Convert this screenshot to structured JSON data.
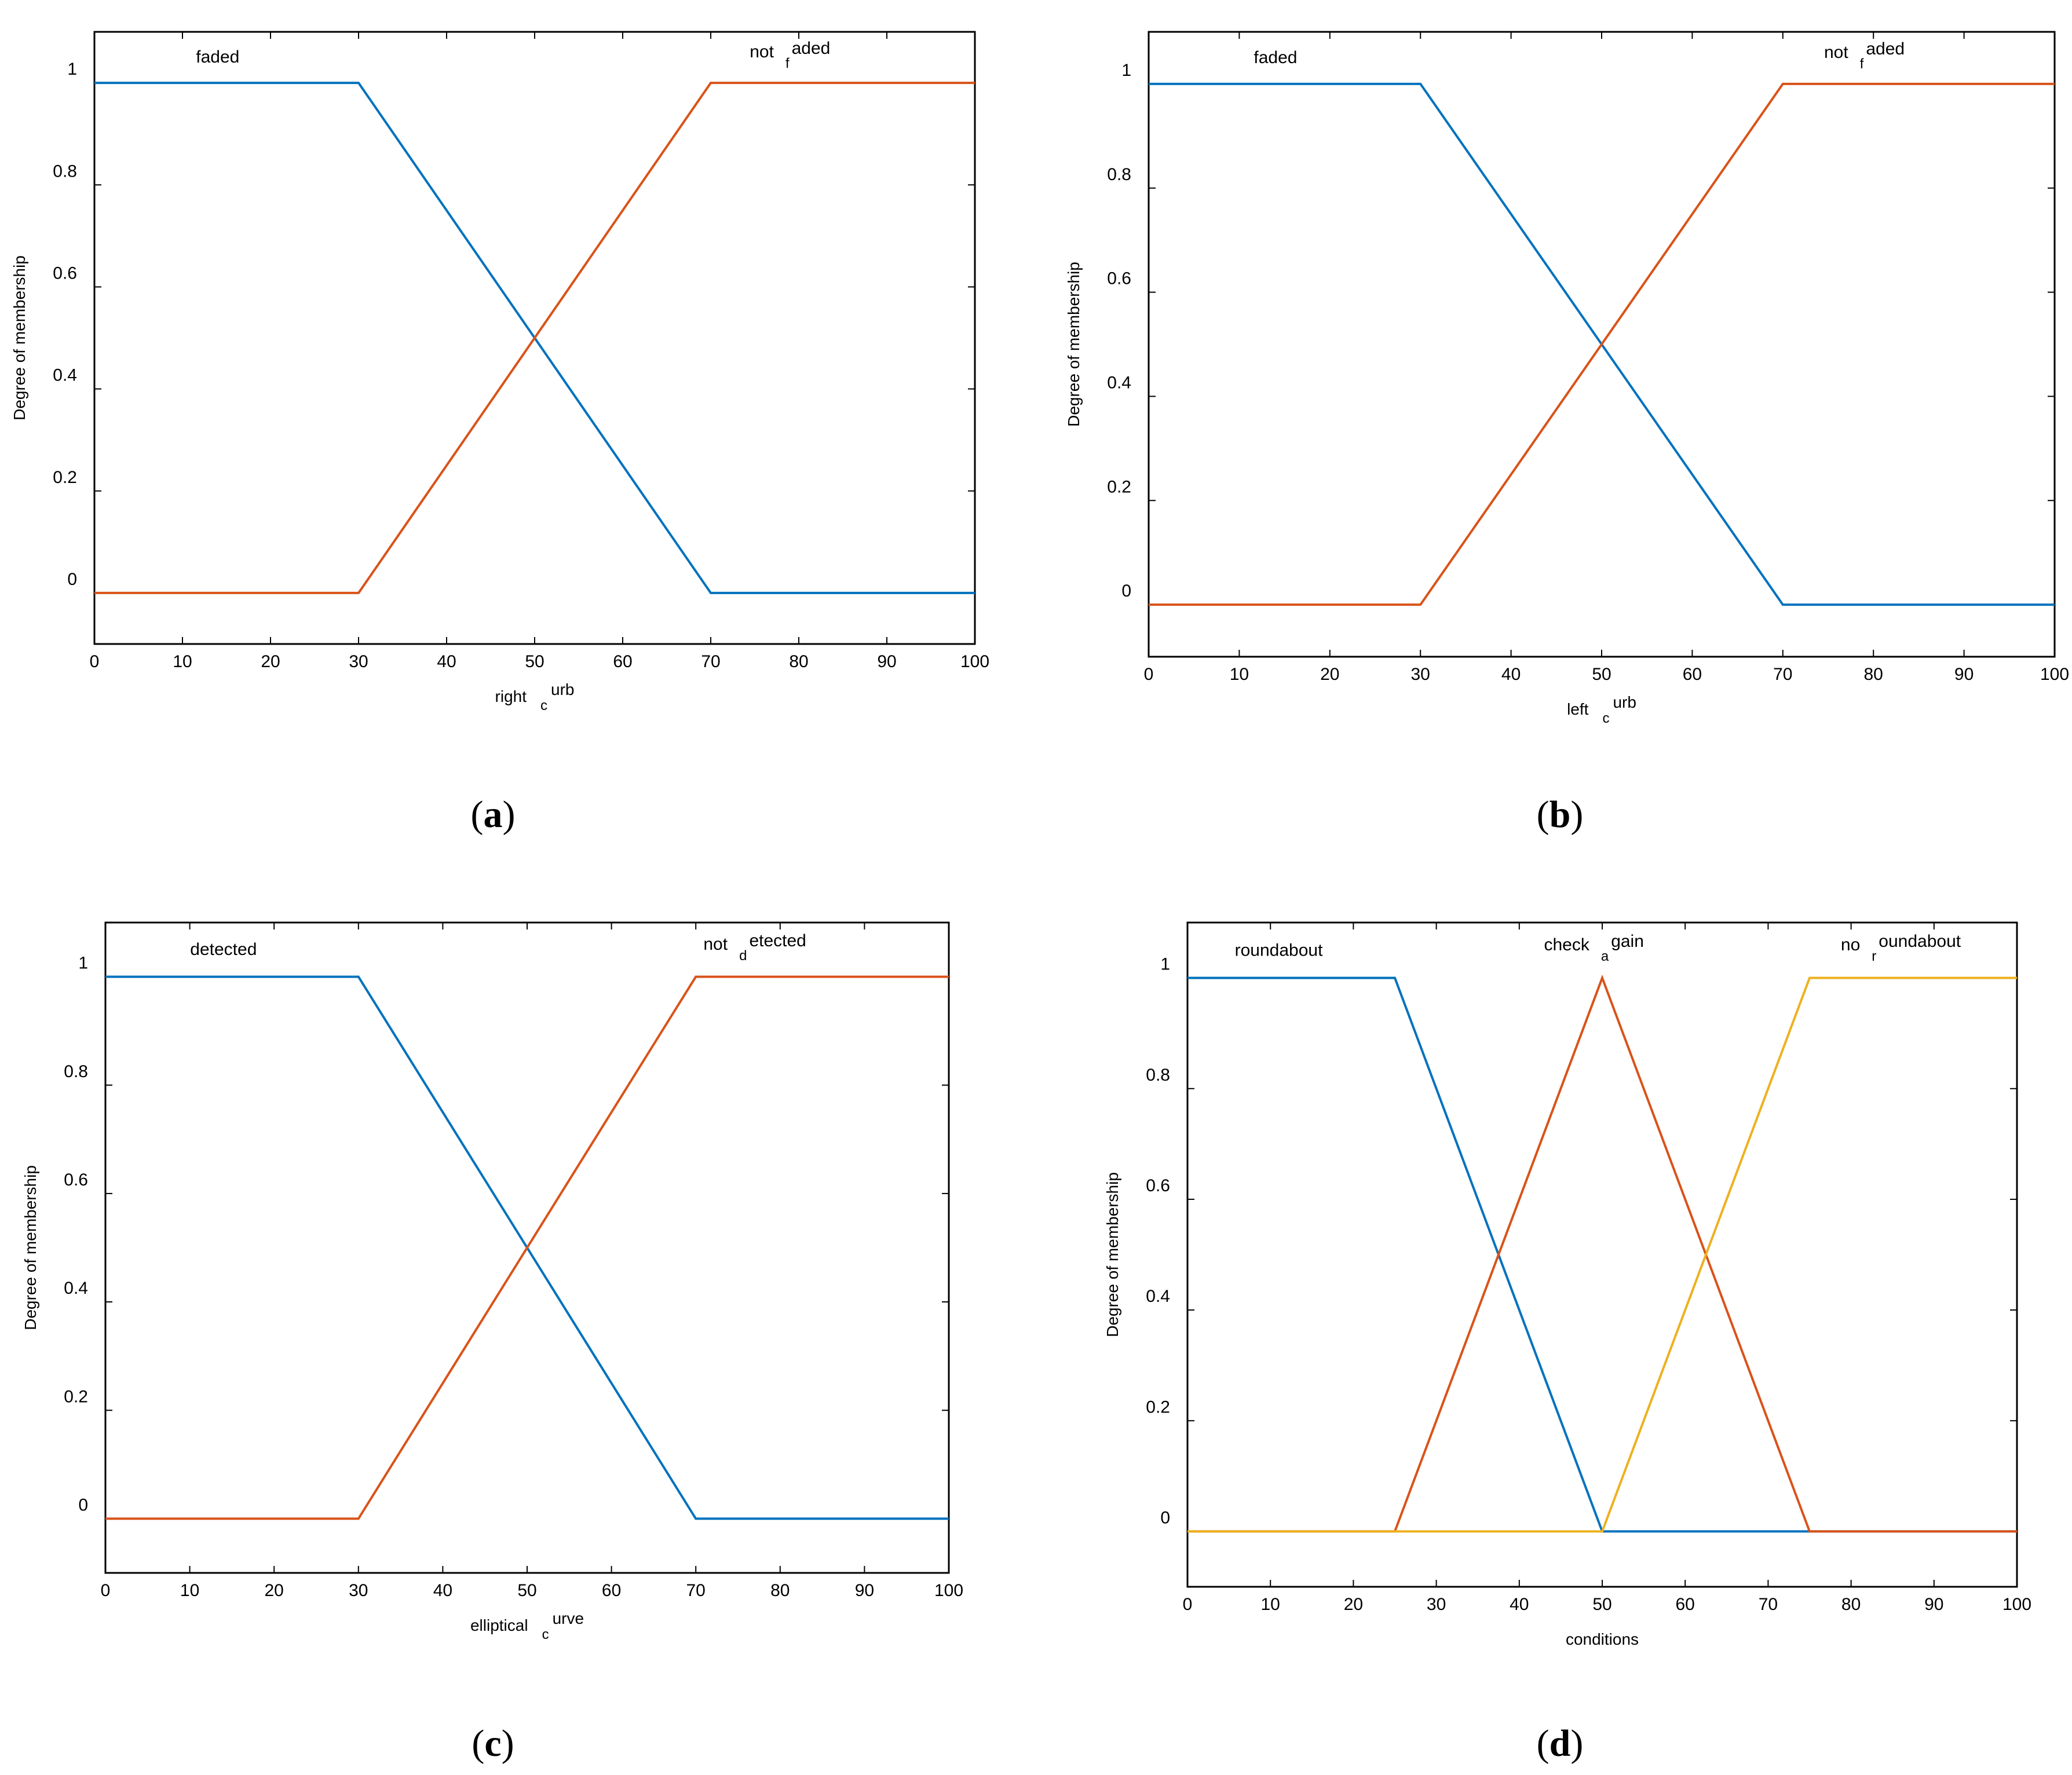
{
  "colors": {
    "series1": "#0072BD",
    "series2": "#D95319",
    "series3": "#EDB120",
    "axis": "#000000"
  },
  "chart_data": [
    {
      "panel": "a",
      "caption": "(a)",
      "type": "line",
      "xlabel_main": "right",
      "xlabel_sub": "c",
      "xlabel_sup": "urb",
      "ylabel": "Degree of membership",
      "xlim": [
        0,
        100
      ],
      "ylim": [
        -0.1,
        1.1
      ],
      "xticks": [
        0,
        10,
        20,
        30,
        40,
        50,
        60,
        70,
        80,
        90,
        100
      ],
      "yticks": [
        0,
        0.2,
        0.4,
        0.6,
        0.8,
        1
      ],
      "series": [
        {
          "label_main": "faded",
          "label_sub": "",
          "label_rest": "",
          "label_x": 14,
          "label_y": 1.04,
          "color_key": "series1",
          "x": [
            0,
            30,
            70,
            100
          ],
          "y": [
            1,
            1,
            0,
            0
          ]
        },
        {
          "label_main": "not",
          "label_sub": "f",
          "label_rest": "aded",
          "label_x": 79,
          "label_y": 1.05,
          "color_key": "series2",
          "x": [
            0,
            30,
            70,
            100
          ],
          "y": [
            0,
            0,
            1,
            1
          ]
        }
      ]
    },
    {
      "panel": "b",
      "caption": "(b)",
      "type": "line",
      "xlabel_main": "left",
      "xlabel_sub": "c",
      "xlabel_sup": "urb",
      "ylabel": "Degree of membership",
      "xlim": [
        0,
        100
      ],
      "ylim": [
        -0.1,
        1.1
      ],
      "xticks": [
        0,
        10,
        20,
        30,
        40,
        50,
        60,
        70,
        80,
        90,
        100
      ],
      "yticks": [
        0,
        0.2,
        0.4,
        0.6,
        0.8,
        1
      ],
      "series": [
        {
          "label_main": "faded",
          "label_sub": "",
          "label_rest": "",
          "label_x": 14,
          "label_y": 1.04,
          "color_key": "series1",
          "x": [
            0,
            30,
            70,
            100
          ],
          "y": [
            1,
            1,
            0,
            0
          ]
        },
        {
          "label_main": "not",
          "label_sub": "f",
          "label_rest": "aded",
          "label_x": 79,
          "label_y": 1.05,
          "color_key": "series2",
          "x": [
            0,
            30,
            70,
            100
          ],
          "y": [
            0,
            0,
            1,
            1
          ]
        }
      ]
    },
    {
      "panel": "c",
      "caption": "(c)",
      "type": "line",
      "xlabel_main": "elliptical",
      "xlabel_sub": "c",
      "xlabel_sup": "urve",
      "ylabel": "Degree of membership",
      "xlim": [
        0,
        100
      ],
      "ylim": [
        -0.1,
        1.1
      ],
      "xticks": [
        0,
        10,
        20,
        30,
        40,
        50,
        60,
        70,
        80,
        90,
        100
      ],
      "yticks": [
        0,
        0.2,
        0.4,
        0.6,
        0.8,
        1
      ],
      "series": [
        {
          "label_main": "detected",
          "label_sub": "",
          "label_rest": "",
          "label_x": 14,
          "label_y": 1.04,
          "color_key": "series1",
          "x": [
            0,
            30,
            70,
            100
          ],
          "y": [
            1,
            1,
            0,
            0
          ]
        },
        {
          "label_main": "not",
          "label_sub": "d",
          "label_rest": "etected",
          "label_x": 77,
          "label_y": 1.05,
          "color_key": "series2",
          "x": [
            0,
            30,
            70,
            100
          ],
          "y": [
            0,
            0,
            1,
            1
          ]
        }
      ]
    },
    {
      "panel": "d",
      "caption": "(d)",
      "type": "line",
      "xlabel_main": "conditions",
      "xlabel_sub": "",
      "xlabel_sup": "",
      "ylabel": "Degree of membership",
      "xlim": [
        0,
        100
      ],
      "ylim": [
        -0.1,
        1.1
      ],
      "xticks": [
        0,
        10,
        20,
        30,
        40,
        50,
        60,
        70,
        80,
        90,
        100
      ],
      "yticks": [
        0,
        0.2,
        0.4,
        0.6,
        0.8,
        1
      ],
      "series": [
        {
          "label_main": "roundabout",
          "label_sub": "",
          "label_rest": "",
          "label_x": 11,
          "label_y": 1.04,
          "color_key": "series1",
          "x": [
            0,
            25,
            50,
            100
          ],
          "y": [
            1,
            1,
            0,
            0
          ]
        },
        {
          "label_main": "check",
          "label_sub": "a",
          "label_rest": "gain",
          "label_x": 49,
          "label_y": 1.05,
          "color_key": "series2",
          "x": [
            0,
            25,
            50,
            75,
            100
          ],
          "y": [
            0,
            0,
            1,
            0,
            0
          ]
        },
        {
          "label_main": "no",
          "label_sub": "r",
          "label_rest": "oundabout",
          "label_x": 86,
          "label_y": 1.05,
          "color_key": "series3",
          "x": [
            0,
            50,
            75,
            100
          ],
          "y": [
            0,
            0,
            1,
            1
          ]
        }
      ]
    }
  ]
}
